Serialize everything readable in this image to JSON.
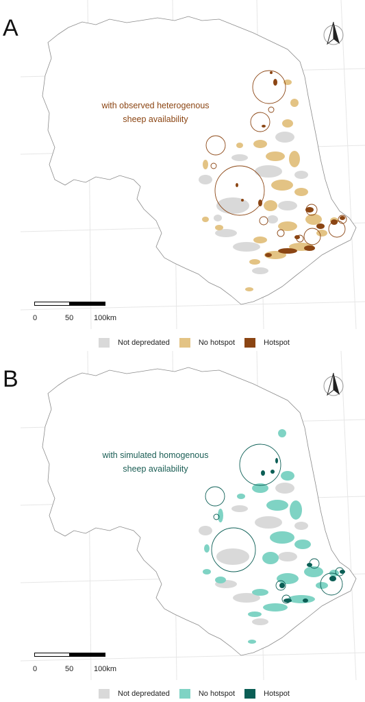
{
  "panels": [
    {
      "id": "A",
      "letter": "A",
      "title_lines": [
        "with observed heterogenous",
        "sheep availability"
      ],
      "scale": {
        "ticks": [
          "0",
          "50",
          "100km"
        ]
      },
      "legend": [
        {
          "label": "Not depredated",
          "color": "#d9d9d9"
        },
        {
          "label": "No hotspot",
          "color": "#e3c384"
        },
        {
          "label": "Hotspot",
          "color": "#8b4513"
        }
      ],
      "accent": "#8b4513",
      "patch_color": "#e3c384",
      "hotspot_color": "#8b4513",
      "title_color": "#8b4513"
    },
    {
      "id": "B",
      "letter": "B",
      "title_lines": [
        "with simulated homogenous",
        "sheep availability"
      ],
      "scale": {
        "ticks": [
          "0",
          "50",
          "100km"
        ]
      },
      "legend": [
        {
          "label": "Not depredated",
          "color": "#d9d9d9"
        },
        {
          "label": "No hotspot",
          "color": "#7fd3c4"
        },
        {
          "label": "Hotspot",
          "color": "#0b5e55"
        }
      ],
      "accent": "#0b5e55",
      "patch_color": "#7fd3c4",
      "hotspot_color": "#0b5e55",
      "title_color": "#1b5e55"
    }
  ],
  "icons": {
    "north_arrow": "north-arrow-icon"
  }
}
